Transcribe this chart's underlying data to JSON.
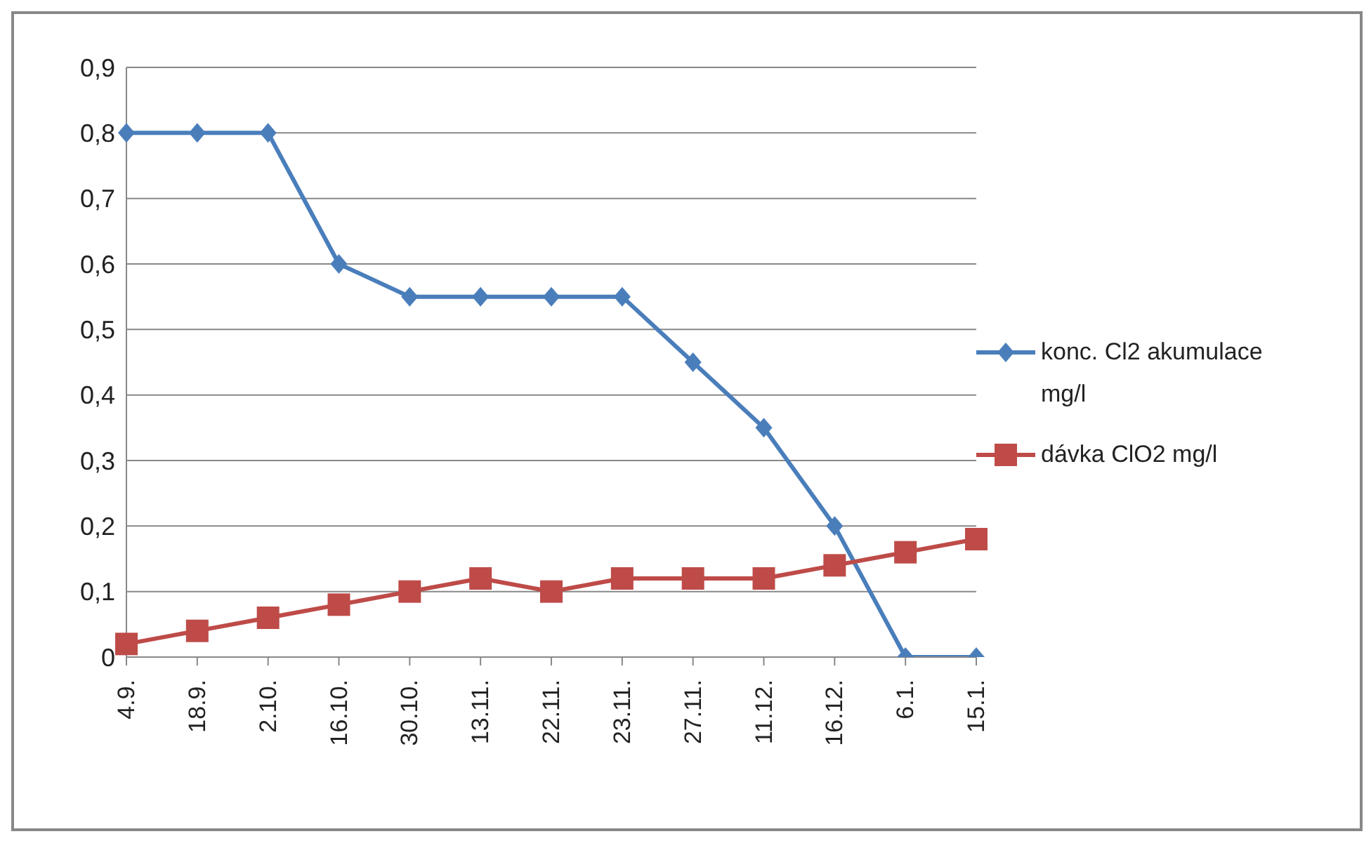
{
  "chart_data": {
    "type": "line",
    "categories": [
      "4.9.",
      "18.9.",
      "2.10.",
      "16.10.",
      "30.10.",
      "13.11.",
      "22.11.",
      "23.11.",
      "27.11.",
      "11.12.",
      "16.12.",
      "6.1.",
      "15.1."
    ],
    "series": [
      {
        "name": "konc. Cl2 akumulace mg/l",
        "color": "#4a7ebb",
        "marker": "diamond",
        "values": [
          0.8,
          0.8,
          0.8,
          0.6,
          0.55,
          0.55,
          0.55,
          0.55,
          0.45,
          0.35,
          0.2,
          0,
          0
        ]
      },
      {
        "name": "dávka ClO2 mg/l",
        "color": "#be4b48",
        "marker": "square",
        "values": [
          0.02,
          0.04,
          0.06,
          0.08,
          0.1,
          0.12,
          0.1,
          0.12,
          0.12,
          0.12,
          0.14,
          0.16,
          0.18
        ]
      }
    ],
    "ylim": [
      0,
      0.9
    ],
    "yticks": [
      0,
      {
        "value": 0.1,
        "label": "0,1"
      },
      {
        "value": 0.2,
        "label": "0,2"
      },
      {
        "value": 0.3,
        "label": "0,3"
      },
      {
        "value": 0.4,
        "label": "0,4"
      },
      {
        "value": 0.5,
        "label": "0,5"
      },
      {
        "value": 0.6,
        "label": "0,6"
      },
      {
        "value": 0.7,
        "label": "0,7"
      },
      {
        "value": 0.8,
        "label": "0,8"
      },
      {
        "value": 0.9,
        "label": "0,9"
      }
    ],
    "grid": "y",
    "legend": "right",
    "line_style": "solid"
  }
}
